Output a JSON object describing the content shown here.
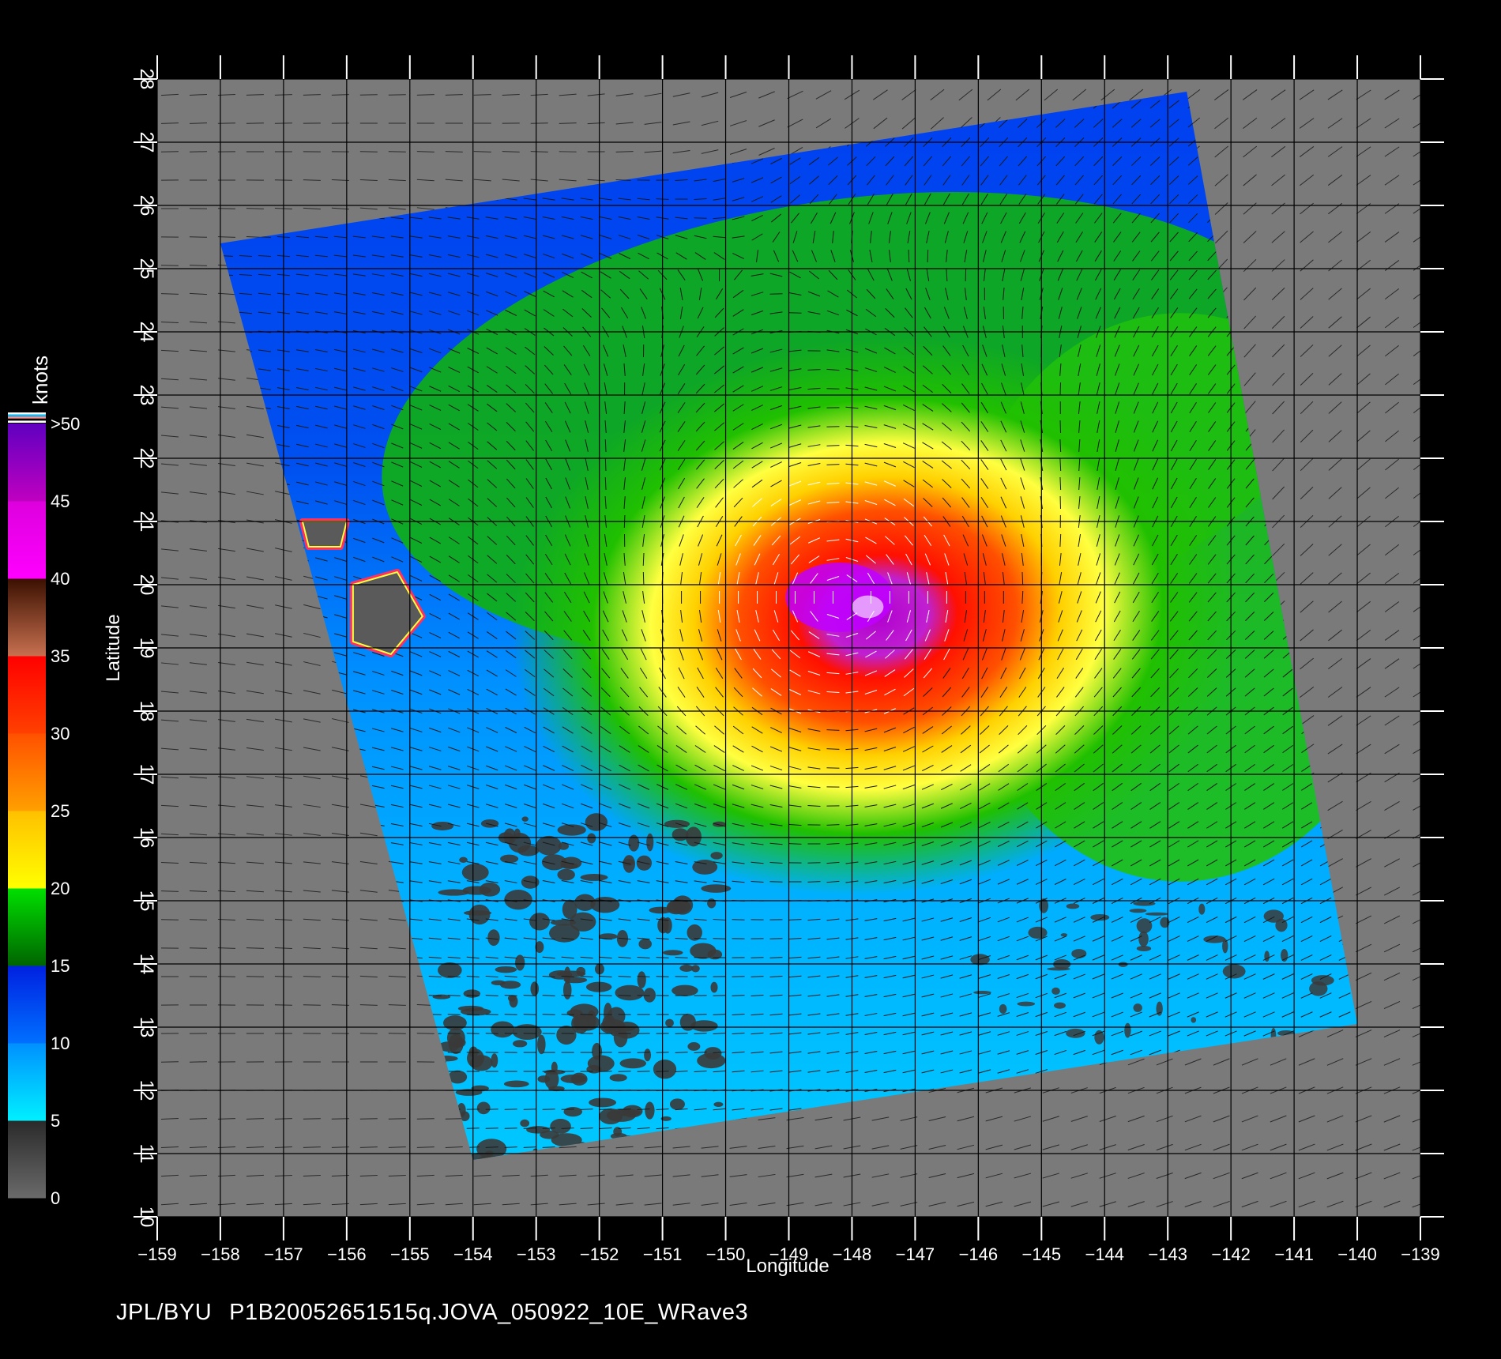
{
  "footer": {
    "source": "JPL/BYU",
    "product": "P1B20052651515q.JOVA_050922_10E_WRave3"
  },
  "axes": {
    "xlabel": "Longitude",
    "ylabel": "Latitude",
    "x_range": [
      -159,
      -139
    ],
    "y_range": [
      10,
      28
    ],
    "x_ticks": [
      "-159",
      "-158",
      "-157",
      "-156",
      "-155",
      "-154",
      "-153",
      "-152",
      "-151",
      "-150",
      "-149",
      "-148",
      "-147",
      "-146",
      "-145",
      "-144",
      "-143",
      "-142",
      "-141",
      "-140",
      "-139"
    ],
    "y_ticks": [
      "10",
      "11",
      "12",
      "13",
      "14",
      "15",
      "16",
      "17",
      "18",
      "19",
      "20",
      "21",
      "22",
      "23",
      "24",
      "25",
      "26",
      "27",
      "28"
    ]
  },
  "colorbar": {
    "unit": "knots",
    "labels": [
      "0",
      "5",
      "10",
      "15",
      "20",
      "25",
      "30",
      "35",
      "40",
      "45",
      ">50"
    ],
    "segments": [
      {
        "from": 0,
        "to": 5,
        "colors": [
          "#6a6a6a",
          "#2a2a2a"
        ]
      },
      {
        "from": 5,
        "to": 10,
        "colors": [
          "#00f0ff",
          "#0090ff"
        ]
      },
      {
        "from": 10,
        "to": 15,
        "colors": [
          "#0070ff",
          "#0020e0"
        ]
      },
      {
        "from": 15,
        "to": 20,
        "colors": [
          "#006400",
          "#00e000"
        ]
      },
      {
        "from": 20,
        "to": 25,
        "colors": [
          "#ffff00",
          "#ffc000"
        ]
      },
      {
        "from": 25,
        "to": 30,
        "colors": [
          "#ffa000",
          "#ff5000"
        ]
      },
      {
        "from": 30,
        "to": 35,
        "colors": [
          "#ff4000",
          "#ff0000"
        ]
      },
      {
        "from": 35,
        "to": 40,
        "colors": [
          "#c87050",
          "#3a1000"
        ]
      },
      {
        "from": 40,
        "to": 45,
        "colors": [
          "#ff00ff",
          "#dd00dd"
        ]
      },
      {
        "from": 45,
        "to": 50,
        "colors": [
          "#c000c0",
          "#6000c0"
        ]
      }
    ]
  },
  "map": {
    "background": "#7a7a7a",
    "swath_corners_lonlat": [
      [
        -158,
        25.4
      ],
      [
        -142.7,
        27.8
      ],
      [
        -140,
        13.05
      ],
      [
        -154,
        10.9
      ]
    ],
    "storm": {
      "name": "JOVA",
      "center_lon": -148.2,
      "center_lat": 19.8
    },
    "islands_lonlat": [
      [
        [
          -155.9,
          20.0
        ],
        [
          -155.2,
          20.2
        ],
        [
          -154.8,
          19.5
        ],
        [
          -155.3,
          18.9
        ],
        [
          -155.9,
          19.1
        ]
      ],
      [
        [
          -156.7,
          21.0
        ],
        [
          -156.0,
          21.0
        ],
        [
          -156.1,
          20.6
        ],
        [
          -156.6,
          20.6
        ]
      ]
    ]
  }
}
